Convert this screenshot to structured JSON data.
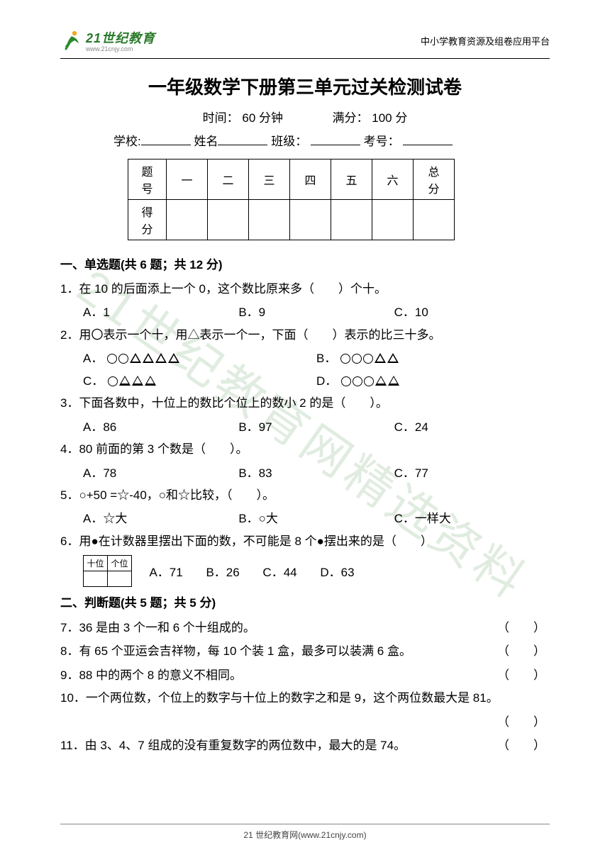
{
  "header": {
    "logo_main": "21世纪教育",
    "logo_sub": "www.21cnjy.com",
    "right_text": "中小学教育资源及组卷应用平台"
  },
  "title": "一年级数学下册第三单元过关检测试卷",
  "meta": {
    "time_label": "时间：",
    "time_value": "60 分钟",
    "score_label": "满分：",
    "score_value": "100 分"
  },
  "fill": {
    "school": "学校:",
    "name": "姓名",
    "class": "班级：",
    "exam_no": "考号："
  },
  "score_table": {
    "row1_label": "题号",
    "cols": [
      "一",
      "二",
      "三",
      "四",
      "五",
      "六",
      "总分"
    ],
    "row2_label": "得分"
  },
  "sections": {
    "s1": {
      "heading": "一、单选题(共 6 题；共 12 分)",
      "q1": {
        "text": "1．在 10 的后面添上一个 0，这个数比原来多（　　）个十。",
        "opts": [
          "A．1",
          "B．9",
          "C．10"
        ]
      },
      "q2": {
        "text": "2．用〇表示一个十，用△表示一个一，下面（　　）表示的比三十多。",
        "a_label": "A．",
        "b_label": "B．",
        "c_label": "C．",
        "d_label": "D．",
        "a_circles": 2,
        "a_tris": 4,
        "b_circles": 3,
        "b_tris": 2,
        "c_circles": 1,
        "c_tris": 3,
        "d_circles": 3,
        "d_tris": 2
      },
      "q3": {
        "text": "3．下面各数中，十位上的数比个位上的数小 2 的是（　　）。",
        "opts": [
          "A．86",
          "B．97",
          "C．24"
        ]
      },
      "q4": {
        "text": "4．80 前面的第 3 个数是（　　）。",
        "opts": [
          "A．78",
          "B．83",
          "C．77"
        ]
      },
      "q5": {
        "text": "5．○+50 =☆-40，○和☆比较，（　　）。",
        "opts": [
          "A．☆大",
          "B．○大",
          "C．一样大"
        ]
      },
      "q6": {
        "text": "6．用●在计数器里摆出下面的数，不可能是 8 个●摆出来的是（　　）",
        "counter_cols": [
          "十位",
          "个位"
        ],
        "opts": [
          "A．71",
          "B．26",
          "C．44",
          "D．63"
        ]
      }
    },
    "s2": {
      "heading": "二、判断题(共 5 题；共 5 分)",
      "q7": "7．36 是由 3 个一和 6 个十组成的。",
      "q8": "8．有 65 个亚运会吉祥物，每 10 个装 1 盒，最多可以装满 6 盒。",
      "q9": "9．88 中的两个 8 的意义不相同。",
      "q10": "10．一个两位数，个位上的数字与十位上的数字之和是 9，这个两位数最大是 81。",
      "q11": "11．由 3、4、7 组成的没有重复数字的两位数中，最大的是 74。",
      "paren": "（　　）"
    }
  },
  "footer": "21 世纪教育网(www.21cnjy.com)",
  "watermark": "21世纪教育网精选资料"
}
